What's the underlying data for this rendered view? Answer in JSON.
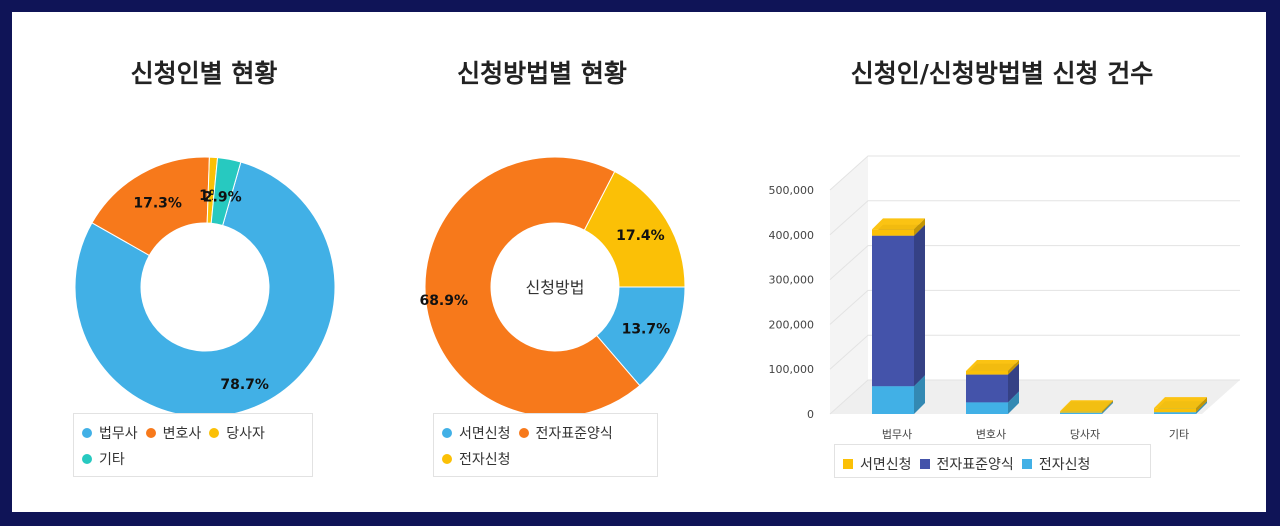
{
  "titles": {
    "c1": "신청인별 현황",
    "c2": "신청방법별 현황",
    "c3": "신청인/신청방법별 신청 건수"
  },
  "chart_data": [
    {
      "type": "pie",
      "title": "신청인별 현황",
      "labels": [
        "법무사",
        "변호사",
        "당사자",
        "기타"
      ],
      "values": [
        78.7,
        17.3,
        1,
        2.9
      ],
      "value_labels": [
        "78.7%",
        "17.3%",
        "1%",
        "2.9%"
      ],
      "colors": [
        "#41b0e6",
        "#f7791b",
        "#fbc006",
        "#27c9c0"
      ],
      "legend_position": "bottom"
    },
    {
      "type": "pie",
      "title": "신청방법별 현황",
      "center_text": "신청방법",
      "labels": [
        "서면신청",
        "전자표준양식",
        "전자신청"
      ],
      "values": [
        13.7,
        68.9,
        17.4
      ],
      "value_labels": [
        "13.7%",
        "68.9%",
        "17.4%"
      ],
      "colors": [
        "#41b0e6",
        "#f7791b",
        "#fbc006"
      ],
      "legend_position": "bottom"
    },
    {
      "type": "bar",
      "stacked": true,
      "title": "신청인/신청방법별 신청 건수",
      "categories": [
        "법무사",
        "변호사",
        "당사자",
        "기타"
      ],
      "series": [
        {
          "name": "서면신청",
          "values": [
            14000,
            8000,
            3000,
            9000
          ],
          "color": "#fbc006"
        },
        {
          "name": "전자표준양식",
          "values": [
            336000,
            62000,
            0,
            0
          ],
          "color": "#4453aa"
        },
        {
          "name": "전자신청",
          "values": [
            62000,
            26000,
            3000,
            4000
          ],
          "color": "#41b0e6"
        }
      ],
      "legend_order": [
        "서면신청",
        "전자표준양식",
        "전자신청"
      ],
      "yticks": [
        "0",
        "100,000",
        "200,000",
        "300,000",
        "400,000",
        "500,000"
      ],
      "ylim": [
        0,
        500000
      ],
      "legend_position": "bottom"
    }
  ]
}
